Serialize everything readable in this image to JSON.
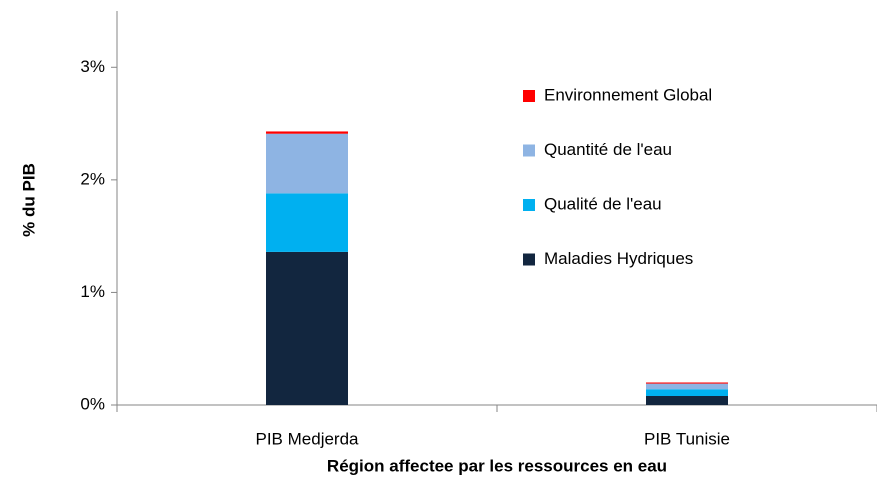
{
  "chart_data": {
    "type": "stacked-bar",
    "xlabel": "Région affectee par les ressources en eau",
    "ylabel": "% du PIB",
    "categories": [
      "PIB Medjerda",
      "PIB Tunisie"
    ],
    "series": [
      {
        "name": "Maladies Hydriques",
        "color": "#12263f",
        "values": [
          1.36,
          0.08
        ]
      },
      {
        "name": "Qualité de l'eau",
        "color": "#00b0f0",
        "values": [
          0.52,
          0.06
        ]
      },
      {
        "name": "Quantité de l'eau",
        "color": "#8eb4e3",
        "values": [
          0.53,
          0.05
        ]
      },
      {
        "name": "Environnement Global",
        "color": "#ff0000",
        "values": [
          0.02,
          0.01
        ]
      }
    ],
    "ylim": [
      0,
      3.5
    ],
    "yticks": [
      {
        "value": 0,
        "label": "0%"
      },
      {
        "value": 1,
        "label": "1%"
      },
      {
        "value": 2,
        "label": "2%"
      },
      {
        "value": 3,
        "label": "3%"
      }
    ],
    "legend": "upper right"
  }
}
